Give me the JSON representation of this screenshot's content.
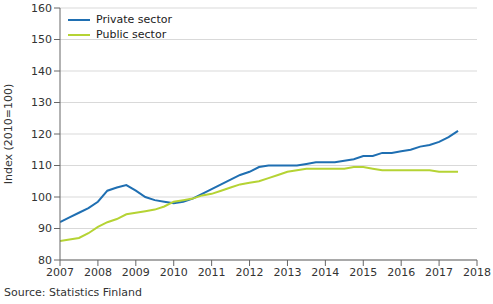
{
  "chart_data": {
    "type": "line",
    "y_label": "Index (2010=100)",
    "source": "Source: Statistics Finland",
    "x": [
      2007,
      2007.25,
      2007.5,
      2007.75,
      2008,
      2008.25,
      2008.5,
      2008.75,
      2009,
      2009.25,
      2009.5,
      2009.75,
      2010,
      2010.25,
      2010.5,
      2010.75,
      2011,
      2011.25,
      2011.5,
      2011.75,
      2012,
      2012.25,
      2012.5,
      2012.75,
      2013,
      2013.25,
      2013.5,
      2013.75,
      2014,
      2014.25,
      2014.5,
      2014.75,
      2015,
      2015.25,
      2015.5,
      2015.75,
      2016,
      2016.25,
      2016.5,
      2016.75,
      2017,
      2017.25,
      2017.5
    ],
    "series": [
      {
        "name": "Private sector",
        "color": "#1f6fb2",
        "values": [
          92,
          93.5,
          95,
          96.5,
          98.5,
          102,
          103,
          103.8,
          102,
          100,
          99,
          98.5,
          98,
          98.5,
          99.5,
          101,
          102.5,
          104,
          105.5,
          107,
          108,
          109.5,
          110,
          110,
          110,
          110,
          110.5,
          111,
          111,
          111,
          111.5,
          112,
          113,
          113,
          114,
          114,
          114.5,
          115,
          116,
          116.5,
          117.5,
          119,
          121
        ]
      },
      {
        "name": "Public sector",
        "color": "#b5d334",
        "values": [
          86,
          86.5,
          87,
          88.5,
          90.5,
          92,
          93,
          94.5,
          95,
          95.5,
          96,
          97,
          98.5,
          99,
          99.5,
          100.5,
          101,
          102,
          103,
          104,
          104.5,
          105,
          106,
          107,
          108,
          108.5,
          109,
          109,
          109,
          109,
          109,
          109.5,
          109.5,
          109,
          108.5,
          108.5,
          108.5,
          108.5,
          108.5,
          108.5,
          108,
          108,
          108
        ]
      }
    ],
    "xlim": [
      2007,
      2018
    ],
    "xticks": [
      2007,
      2008,
      2009,
      2010,
      2011,
      2012,
      2013,
      2014,
      2015,
      2016,
      2017,
      2018
    ],
    "ylim": [
      80,
      160
    ],
    "yticks": [
      80,
      90,
      100,
      110,
      120,
      130,
      140,
      150,
      160
    ],
    "grid": true,
    "legend": "upper left"
  }
}
